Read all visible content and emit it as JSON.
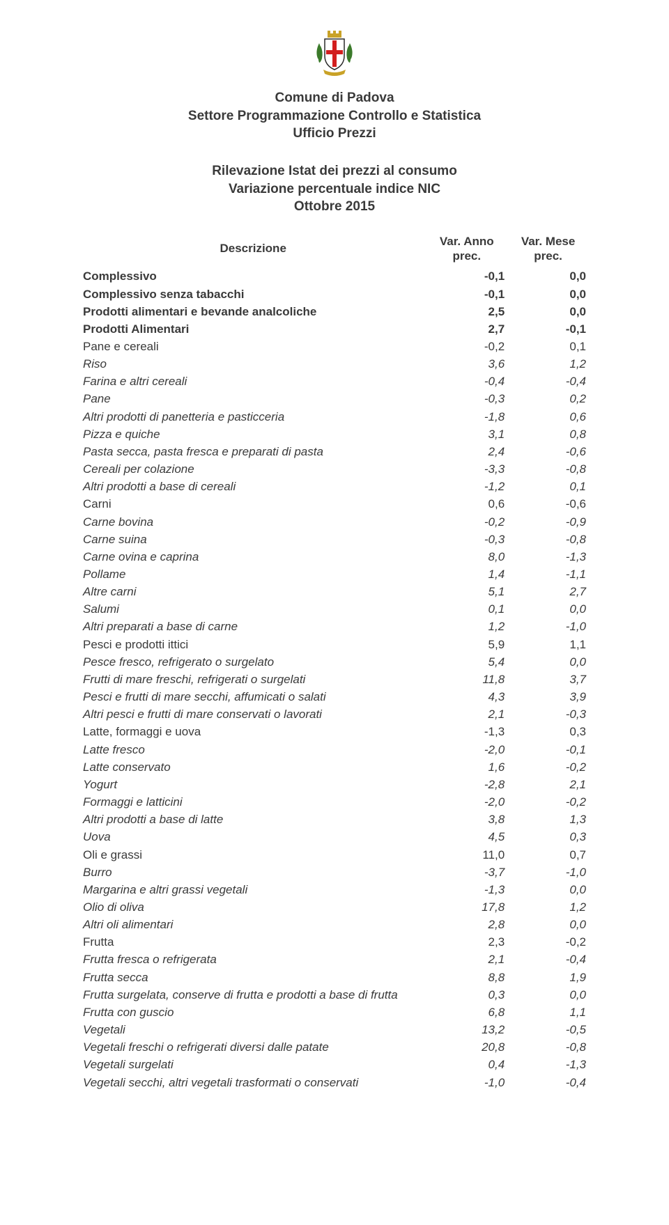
{
  "logo": {
    "crown_color": "#c9a227",
    "shield_border": "#2a2a2a",
    "shield_fill": "#ffffff",
    "cross_color": "#d21f1f",
    "laurel_color": "#3b7a2a"
  },
  "header": {
    "line1": "Comune di Padova",
    "line2": "Settore Programmazione Controllo e Statistica",
    "line3": "Ufficio Prezzi"
  },
  "subheader": {
    "line1": "Rilevazione Istat dei prezzi al consumo",
    "line2": "Variazione percentuale indice NIC",
    "line3": "Ottobre 2015"
  },
  "table": {
    "columns": {
      "desc": "Descrizione",
      "col1_line1": "Var. Anno",
      "col1_line2": "prec.",
      "col2_line1": "Var. Mese",
      "col2_line2": "prec."
    },
    "rows": [
      {
        "level": 0,
        "desc": "Complessivo",
        "v1": "-0,1",
        "v2": "0,0"
      },
      {
        "level": 0,
        "desc": "Complessivo senza tabacchi",
        "v1": "-0,1",
        "v2": "0,0"
      },
      {
        "level": 0,
        "desc": "Prodotti alimentari e bevande analcoliche",
        "v1": "2,5",
        "v2": "0,0"
      },
      {
        "level": 0,
        "desc": "Prodotti Alimentari",
        "v1": "2,7",
        "v2": "-0,1"
      },
      {
        "level": 1,
        "desc": "Pane e cereali",
        "v1": "-0,2",
        "v2": "0,1"
      },
      {
        "level": 2,
        "desc": "Riso",
        "v1": "3,6",
        "v2": "1,2"
      },
      {
        "level": 2,
        "desc": "Farina e altri cereali",
        "v1": "-0,4",
        "v2": "-0,4"
      },
      {
        "level": 2,
        "desc": "Pane",
        "v1": "-0,3",
        "v2": "0,2"
      },
      {
        "level": 2,
        "desc": "Altri prodotti di panetteria e pasticceria",
        "v1": "-1,8",
        "v2": "0,6"
      },
      {
        "level": 2,
        "desc": "Pizza e quiche",
        "v1": "3,1",
        "v2": "0,8"
      },
      {
        "level": 2,
        "desc": "Pasta secca, pasta fresca e preparati di pasta",
        "v1": "2,4",
        "v2": "-0,6"
      },
      {
        "level": 2,
        "desc": "Cereali per colazione",
        "v1": "-3,3",
        "v2": "-0,8"
      },
      {
        "level": 2,
        "desc": "Altri prodotti a base di cereali",
        "v1": "-1,2",
        "v2": "0,1"
      },
      {
        "level": 1,
        "desc": "Carni",
        "v1": "0,6",
        "v2": "-0,6"
      },
      {
        "level": 2,
        "desc": "Carne bovina",
        "v1": "-0,2",
        "v2": "-0,9"
      },
      {
        "level": 2,
        "desc": "Carne suina",
        "v1": "-0,3",
        "v2": "-0,8"
      },
      {
        "level": 2,
        "desc": "Carne ovina e caprina",
        "v1": "8,0",
        "v2": "-1,3"
      },
      {
        "level": 2,
        "desc": "Pollame",
        "v1": "1,4",
        "v2": "-1,1"
      },
      {
        "level": 2,
        "desc": "Altre carni",
        "v1": "5,1",
        "v2": "2,7"
      },
      {
        "level": 2,
        "desc": "Salumi",
        "v1": "0,1",
        "v2": "0,0"
      },
      {
        "level": 2,
        "desc": "Altri preparati a base di carne",
        "v1": "1,2",
        "v2": "-1,0"
      },
      {
        "level": 1,
        "desc": "Pesci e prodotti ittici",
        "v1": "5,9",
        "v2": "1,1"
      },
      {
        "level": 2,
        "desc": "Pesce fresco, refrigerato o surgelato",
        "v1": "5,4",
        "v2": "0,0"
      },
      {
        "level": 2,
        "desc": "Frutti di mare freschi, refrigerati o surgelati",
        "v1": "11,8",
        "v2": "3,7"
      },
      {
        "level": 2,
        "desc": "Pesci e frutti di mare secchi, affumicati o salati",
        "v1": "4,3",
        "v2": "3,9"
      },
      {
        "level": 2,
        "desc": "Altri pesci e frutti di mare conservati o lavorati",
        "v1": "2,1",
        "v2": "-0,3"
      },
      {
        "level": 1,
        "desc": "Latte, formaggi e uova",
        "v1": "-1,3",
        "v2": "0,3"
      },
      {
        "level": 2,
        "desc": "Latte fresco",
        "v1": "-2,0",
        "v2": "-0,1"
      },
      {
        "level": 2,
        "desc": "Latte conservato",
        "v1": "1,6",
        "v2": "-0,2"
      },
      {
        "level": 2,
        "desc": "Yogurt",
        "v1": "-2,8",
        "v2": "2,1"
      },
      {
        "level": 2,
        "desc": "Formaggi e latticini",
        "v1": "-2,0",
        "v2": "-0,2"
      },
      {
        "level": 2,
        "desc": "Altri prodotti a base di latte",
        "v1": "3,8",
        "v2": "1,3"
      },
      {
        "level": 2,
        "desc": "Uova",
        "v1": "4,5",
        "v2": "0,3"
      },
      {
        "level": 1,
        "desc": "Oli e grassi",
        "v1": "11,0",
        "v2": "0,7"
      },
      {
        "level": 2,
        "desc": "Burro",
        "v1": "-3,7",
        "v2": "-1,0"
      },
      {
        "level": 2,
        "desc": "Margarina e altri grassi vegetali",
        "v1": "-1,3",
        "v2": "0,0"
      },
      {
        "level": 2,
        "desc": "Olio di oliva",
        "v1": "17,8",
        "v2": "1,2"
      },
      {
        "level": 2,
        "desc": "Altri oli alimentari",
        "v1": "2,8",
        "v2": "0,0"
      },
      {
        "level": 1,
        "desc": "Frutta",
        "v1": "2,3",
        "v2": "-0,2"
      },
      {
        "level": 2,
        "desc": "Frutta fresca o refrigerata",
        "v1": "2,1",
        "v2": "-0,4"
      },
      {
        "level": 2,
        "desc": "Frutta secca",
        "v1": "8,8",
        "v2": "1,9"
      },
      {
        "level": 2,
        "desc": "Frutta surgelata, conserve di frutta e prodotti a base di frutta",
        "v1": "0,3",
        "v2": "0,0"
      },
      {
        "level": 2,
        "desc": "Frutta con guscio",
        "v1": "6,8",
        "v2": "1,1"
      },
      {
        "level": 2,
        "desc": "Vegetali",
        "v1": "13,2",
        "v2": "-0,5"
      },
      {
        "level": 2,
        "desc": "Vegetali freschi o refrigerati diversi dalle patate",
        "v1": "20,8",
        "v2": "-0,8"
      },
      {
        "level": 2,
        "desc": "Vegetali surgelati",
        "v1": "0,4",
        "v2": "-1,3"
      },
      {
        "level": 2,
        "desc": "Vegetali secchi, altri vegetali trasformati o conservati",
        "v1": "-1,0",
        "v2": "-0,4"
      }
    ]
  },
  "style": {
    "text_color": "#3a3a3a",
    "background_color": "#ffffff",
    "font_family": "Arial, Helvetica, sans-serif",
    "header_fontsize": 19,
    "body_fontsize": 17,
    "line_height": 1.48
  }
}
